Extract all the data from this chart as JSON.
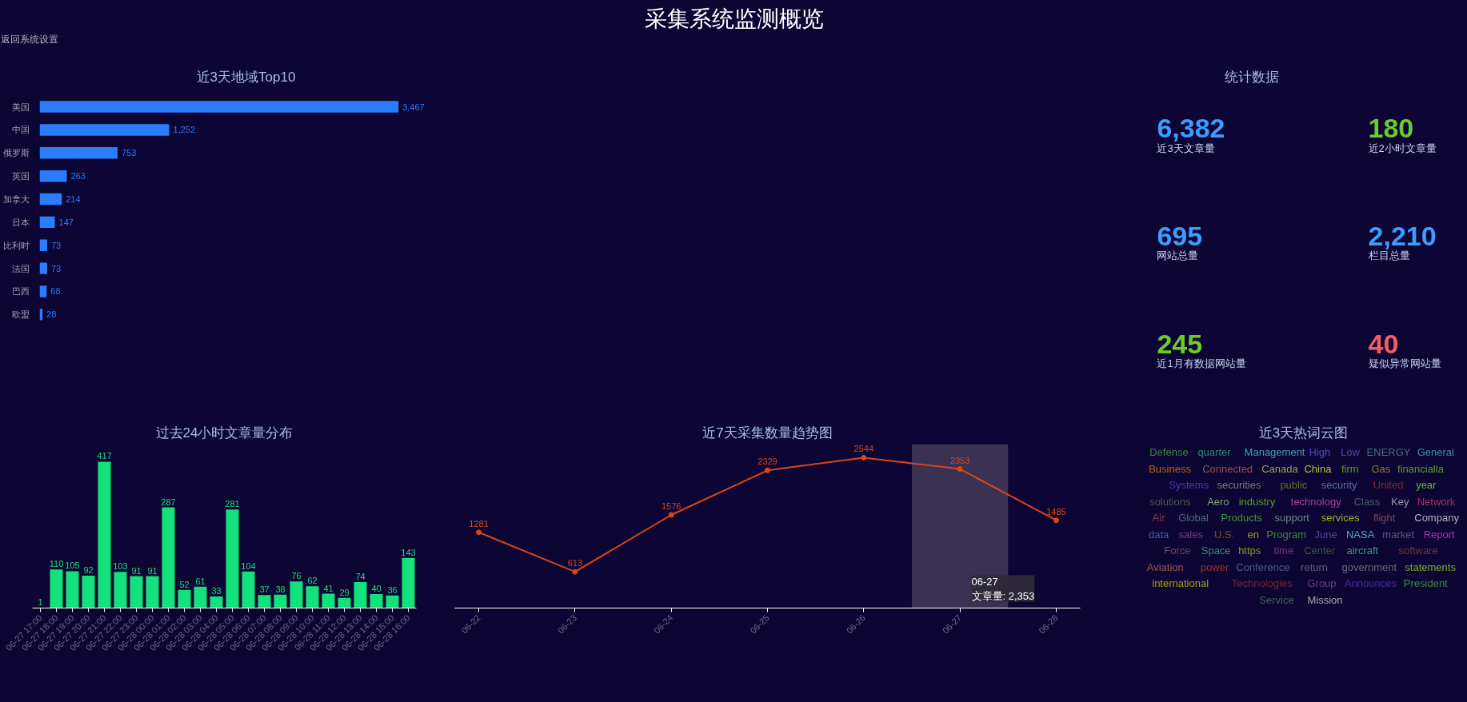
{
  "chart_data": [
    {
      "type": "other",
      "title": "采集系统监测概览",
      "annotations": [
        "返回系统设置"
      ]
    },
    {
      "type": "bar",
      "orientation": "horizontal",
      "title": "近3天地域Top10",
      "categories": [
        "美国",
        "中国",
        "俄罗斯",
        "英国",
        "加拿大",
        "日本",
        "比利时",
        "法国",
        "巴西",
        "欧盟"
      ],
      "values": [
        3467,
        1252,
        753,
        263,
        214,
        147,
        73,
        73,
        68,
        28
      ],
      "value_labels": [
        "3,467",
        "1,252",
        "753",
        "263",
        "214",
        "147",
        "73",
        "73",
        "68",
        "28"
      ],
      "color": "#2b7cff",
      "tick_labels": "y"
    },
    {
      "type": "other",
      "title": "统计数据",
      "annotations": [
        "6,382",
        "近3天文章量",
        "180",
        "近2小时文章量",
        "695",
        "网站总量",
        "2,210",
        "栏目总量",
        "245",
        "近1月有数据网站量",
        "40",
        "疑似异常网站量"
      ],
      "colors": [
        "#3d9cff",
        "#c9d3f2",
        "#6bcb2b",
        "#c9d3f2",
        "#3d9cff",
        "#c9d3f2",
        "#3d9cff",
        "#c9d3f2",
        "#6bcb2b",
        "#c9d3f2",
        "#f5605f",
        "#c9d3f2"
      ]
    },
    {
      "type": "bar",
      "title": "过去24小时文章量分布",
      "categories": [
        "06-27 17:00",
        "06-27 18:00",
        "06-27 19:00",
        "06-27 20:00",
        "06-27 21:00",
        "06-27 22:00",
        "06-27 23:00",
        "06-28 00:00",
        "06-28 01:00",
        "06-28 02:00",
        "06-28 03:00",
        "06-28 04:00",
        "06-28 05:00",
        "06-28 06:00",
        "06-28 07:00",
        "06-28 08:00",
        "06-28 09:00",
        "06-28 10:00",
        "06-28 11:00",
        "06-28 12:00",
        "06-28 13:00",
        "06-28 14:00",
        "06-28 15:00",
        "06-28 16:00"
      ],
      "values": [
        1,
        110,
        105,
        92,
        417,
        103,
        91,
        91,
        287,
        52,
        61,
        33,
        281,
        104,
        37,
        38,
        76,
        62,
        41,
        29,
        74,
        40,
        36,
        143
      ],
      "color": "#14e07c",
      "data_labels": true,
      "tick_labels": "x"
    },
    {
      "type": "line",
      "title": "近7天采集数量趋势图",
      "categories": [
        "06-22",
        "06-23",
        "06-24",
        "06-25",
        "06-26",
        "06-27",
        "06-28"
      ],
      "values": [
        1281,
        613,
        1576,
        2329,
        2544,
        2353,
        1485
      ],
      "color": "#d9461d",
      "tick_labels": "x",
      "data_labels": true,
      "marker": "circle",
      "bands": [
        {
          "axis": "x",
          "from": "06-27",
          "to": "06-27",
          "color": "#3b3152"
        }
      ],
      "annotations": [
        "06-27\n文章量: 2,353"
      ]
    },
    {
      "type": "other",
      "title": "近3天热词云图",
      "annotations": [
        "Defense",
        "quarter",
        "Management",
        "High",
        "Low",
        "ENERGY",
        "General",
        "Business",
        "Connected",
        "Canada",
        "China",
        "firm",
        "Gas",
        "financialla",
        "Systems",
        "securities",
        "public",
        "security",
        "United",
        "year",
        "solutions",
        "Aero",
        "industry",
        "technology",
        "Class",
        "Key",
        "Network",
        "Air",
        "Global",
        "Products",
        "support",
        "services",
        "flight",
        "Company",
        "data",
        "sales",
        "U.S.",
        "en",
        "Program",
        "June",
        "NASA",
        "market",
        "Report",
        "Force",
        "Space",
        "https",
        "time",
        "Center",
        "aircraft",
        "software",
        "Aviation",
        "power",
        "Conference",
        "return",
        "government",
        "statements",
        "international",
        "Technologies",
        "Group",
        "Announces",
        "President",
        "Service",
        "Mission"
      ],
      "colors": [
        "#3a8a3a",
        "#2f8a78",
        "#3aa3a8",
        "#4a4ac0",
        "#4a4aa8",
        "#4a6a80",
        "#3a8fb0",
        "#b8620f",
        "#9a4a55",
        "#a0a040",
        "#a8c048",
        "#5f9a2a",
        "#8a7a3a",
        "#5a9a30",
        "#4a3ab0",
        "#7a7a6a",
        "#6a6a2a",
        "#5a6aaa",
        "#7a2a3a",
        "#6ab82a",
        "#4a5a4a",
        "#7aa07a",
        "#5a9a2a",
        "#9a4a9a",
        "#4a5a6a",
        "#9a9ab0",
        "#9a3a6a",
        "#7a3a5a",
        "#4a6a7a",
        "#3a9a3a",
        "#6a8a8a",
        "#9ab82a",
        "#7a4a5a",
        "#b0b0c0",
        "#4a5ab0",
        "#7a3a8a",
        "#7a4a2a",
        "#9a9a1a",
        "#3a8a3a",
        "#4a4a9a",
        "#4ab0c0",
        "#5a5a7a",
        "#b030b0",
        "#6a4a5a",
        "#3a8a7a",
        "#8a9a2a",
        "#7a3a7a",
        "#3a5a3a",
        "#3a9a7a",
        "#6a3a3a",
        "#9a5a4a",
        "#a03030",
        "#4a5a8a",
        "#6a5a7a",
        "#6a6a7a",
        "#7ab030",
        "#a0a010",
        "#6a2a3a",
        "#6a3a8a",
        "#4a2aa0",
        "#3a8a3a",
        "#3a6a5a",
        "#a8a8a8"
      ]
    }
  ]
}
